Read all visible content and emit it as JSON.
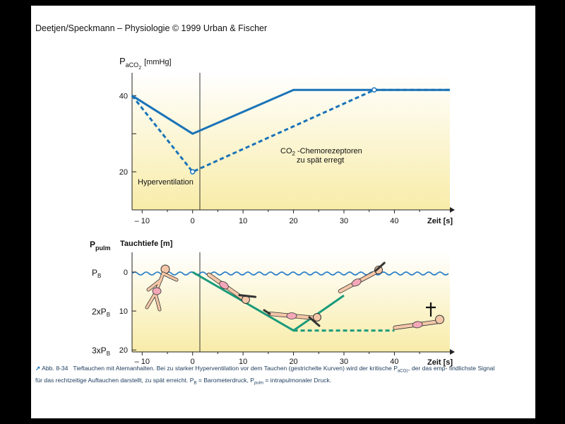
{
  "header": "Deetjen/Speckmann – Physiologie © 1999 Urban & Fischer",
  "chart_data": [
    {
      "type": "line",
      "ylabel_main": "P",
      "ylabel_sub": "aCO",
      "ylabel_sub2": "2",
      "ylabel_unit": "[mmHg]",
      "xlabel": "Zeit [s]",
      "x_ticks": [
        -10,
        0,
        10,
        20,
        30,
        40
      ],
      "x_tick_labels": [
        "– 10",
        "0",
        "10",
        "20",
        "30",
        "40"
      ],
      "y_tick_labels": [
        "40",
        "20"
      ],
      "y_ticks": [
        40,
        20
      ],
      "xlim": [
        -12,
        51
      ],
      "ylim": [
        10,
        46
      ],
      "series": [
        {
          "style": "solid",
          "color": "#1a73b8",
          "points": [
            [
              -12,
              40
            ],
            [
              0,
              30
            ],
            [
              20,
              41.5
            ],
            [
              51,
              41.5
            ]
          ]
        },
        {
          "style": "dashed",
          "color": "#1a73b8",
          "points": [
            [
              -12,
              40
            ],
            [
              0,
              20
            ],
            [
              36,
              41.5
            ],
            [
              51,
              41.5
            ]
          ]
        }
      ],
      "markers": [
        [
          0,
          20
        ],
        [
          36,
          41.5
        ]
      ],
      "annotations": {
        "hyper": "Hyperventilation",
        "co2_a": "CO",
        "co2_sub": "2",
        "co2_b": " -Chemorezeptoren",
        "co2_line2": "zu spät erregt"
      }
    },
    {
      "type": "line",
      "ylabel_left_main": "P",
      "ylabel_left_sub": "pulm",
      "ylabel_right": "Tauchtiefe [m]",
      "xlabel": "Zeit [s]",
      "x_ticks": [
        -10,
        0,
        10,
        20,
        30,
        40
      ],
      "x_tick_labels": [
        "– 10",
        "0",
        "10",
        "20",
        "30",
        "40"
      ],
      "y_ticks": [
        0,
        10,
        20
      ],
      "y_tick_labels": [
        "0",
        "10",
        "20"
      ],
      "pressure_labels": [
        {
          "pre": "",
          "main": "P",
          "sub": "B"
        },
        {
          "pre": "2x",
          "main": "P",
          "sub": "B"
        },
        {
          "pre": "3x",
          "main": "P",
          "sub": "B"
        }
      ],
      "xlim": [
        -12,
        51
      ],
      "ylim": [
        0,
        20.5
      ],
      "series": [
        {
          "style": "solid",
          "color": "#1a9a7a",
          "points": [
            [
              0,
              0
            ],
            [
              20,
              15
            ],
            [
              30,
              6
            ]
          ]
        },
        {
          "style": "dashed",
          "color": "#1a9a7a",
          "points": [
            [
              20,
              15
            ],
            [
              40,
              15
            ]
          ]
        }
      ],
      "icons": [
        "swimmer-surface-icon",
        "diver-descending-icon",
        "diver-bottom-icon",
        "diver-ascending-icon",
        "drowned-diver-icon",
        "cross-icon"
      ]
    }
  ],
  "caption": {
    "label": "Abb. 8-34",
    "text_1": "Tieftauchen mit Atemanhalten. Bei zu starker Hyperventilation vor dem Tauchen (gestrichelte Kurven) wird der kritische P",
    "sub_1": "aCO",
    "sub_2": "2",
    "text_2": ", der das emp-",
    "text_3": "findlichste Signal für das rechtzeitige Auftauchen darstellt, zu spät erreicht. P",
    "sub_3": "B",
    "text_4": " = Barometerdruck, P",
    "sub_4": "pulm",
    "text_5": " = intrapulmonaler Druck."
  },
  "colors": {
    "curve_blue": "#1a73b8",
    "curve_green": "#1a9a7a",
    "water": "#2a7fc8",
    "bg_gradient_top": "#ffffff",
    "bg_gradient_bottom": "#f8eca8"
  }
}
